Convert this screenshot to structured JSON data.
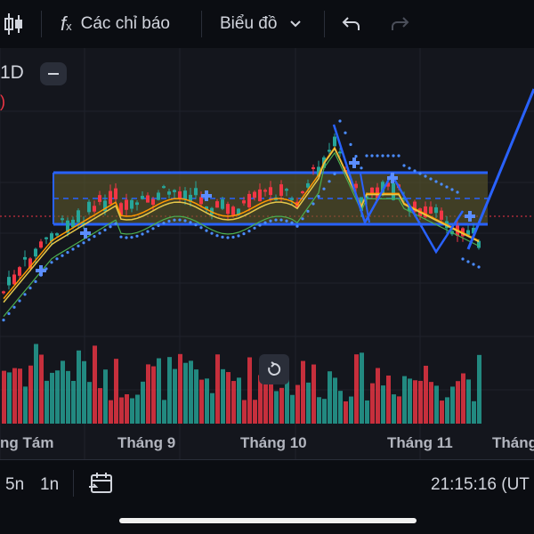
{
  "toolbar": {
    "indicators_label": "Các chỉ báo",
    "chart_type_label": "Biểu đồ"
  },
  "chart": {
    "symbol_interval": "1D",
    "status_fragment": ")",
    "x_axis_labels": [
      "ng Tám",
      "Tháng 9",
      "Tháng 10",
      "Tháng 11",
      "Tháng"
    ]
  },
  "bottom_bar": {
    "range_5y": "5n",
    "range_1y": "1n",
    "clock": "21:15:16 (UT"
  },
  "colors": {
    "up": "#26a69a",
    "down": "#f23645",
    "line": "#2962ff",
    "box_fill": "#5d5a2c"
  }
}
